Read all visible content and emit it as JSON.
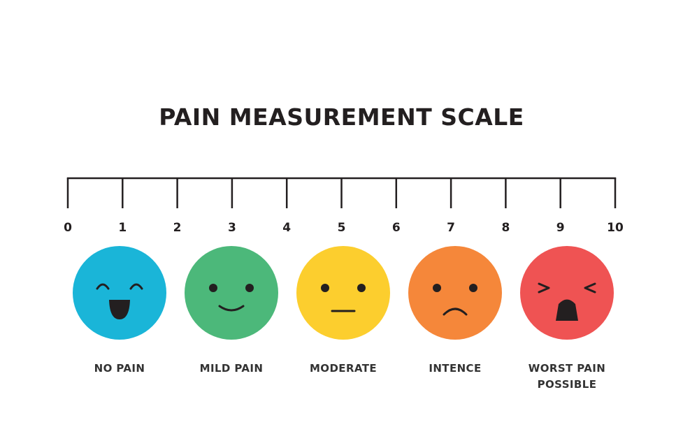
{
  "title": "PAIN MEASUREMENT SCALE",
  "scale": {
    "min": 0,
    "max": 10,
    "ticks": [
      "0",
      "1",
      "2",
      "3",
      "4",
      "5",
      "6",
      "7",
      "8",
      "9",
      "10"
    ]
  },
  "faces": [
    {
      "label_lines": [
        "NO PAIN"
      ],
      "color": "#1ab5d8",
      "expression": "laughing-face-icon"
    },
    {
      "label_lines": [
        "MILD PAIN"
      ],
      "color": "#4cb87a",
      "expression": "smiling-face-icon"
    },
    {
      "label_lines": [
        "MODERATE"
      ],
      "color": "#fcce2e",
      "expression": "neutral-face-icon"
    },
    {
      "label_lines": [
        "INTENCE"
      ],
      "color": "#f5873a",
      "expression": "sad-face-icon"
    },
    {
      "label_lines": [
        "WORST PAIN",
        "POSSIBLE"
      ],
      "color": "#ef5353",
      "expression": "crying-face-icon"
    }
  ]
}
